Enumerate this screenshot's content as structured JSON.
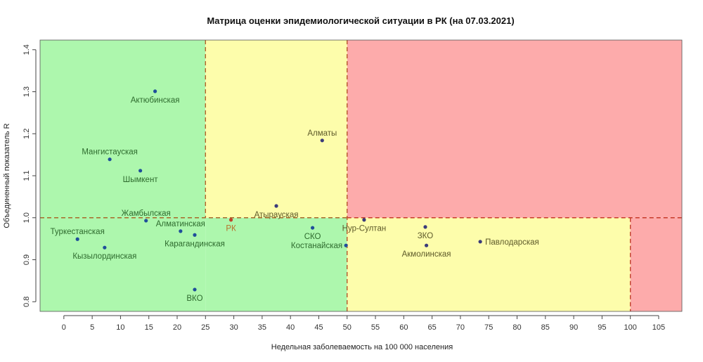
{
  "chart_data": {
    "type": "scatter",
    "title": "Матрица оценки эпидемиологической ситуации в РК (на 07.03.2021)",
    "xlabel": "Недельная заболеваемость на 100 000 населения",
    "ylabel": "Объединенный показатель R",
    "xlim": [
      -4.2,
      109.1
    ],
    "ylim": [
      0.777,
      1.423
    ],
    "xticks": [
      0,
      5,
      10,
      15,
      20,
      25,
      30,
      35,
      40,
      45,
      50,
      55,
      60,
      65,
      70,
      75,
      80,
      85,
      90,
      95,
      100,
      105
    ],
    "yticks": [
      0.8,
      0.9,
      1.0,
      1.1,
      1.2,
      1.3,
      1.4
    ],
    "ytick_labels": [
      "0.8",
      "0.9",
      "1.0",
      "1.1",
      "1.2",
      "1.3",
      "1.4"
    ],
    "grid": false,
    "zones": [
      {
        "name": "green",
        "color": "#adf7ad",
        "x": [
          -4.2,
          25
        ],
        "y": [
          0.777,
          1.423
        ]
      },
      {
        "name": "green",
        "color": "#adf7ad",
        "x": [
          25,
          50
        ],
        "y": [
          0.777,
          1.0
        ]
      },
      {
        "name": "yellow",
        "color": "#fdfdab",
        "x": [
          25,
          50
        ],
        "y": [
          1.0,
          1.423
        ]
      },
      {
        "name": "yellow",
        "color": "#fdfdab",
        "x": [
          50,
          100
        ],
        "y": [
          0.777,
          1.0
        ]
      },
      {
        "name": "red",
        "color": "#fdabab",
        "x": [
          50,
          109.1
        ],
        "y": [
          1.0,
          1.423
        ]
      },
      {
        "name": "red",
        "color": "#fdabab",
        "x": [
          100,
          109.1
        ],
        "y": [
          0.777,
          1.0
        ]
      }
    ],
    "thresholds": {
      "x": [
        25,
        50,
        100
      ],
      "y": 1.0
    },
    "points": [
      {
        "name": "Актюбинская",
        "x": 16.1,
        "y": 1.301
      },
      {
        "name": "Мангистауская",
        "x": 8.1,
        "y": 1.139
      },
      {
        "name": "Шымкент",
        "x": 13.5,
        "y": 1.112
      },
      {
        "name": "Алматы",
        "x": 45.6,
        "y": 1.184
      },
      {
        "name": "Атырауская",
        "x": 37.5,
        "y": 1.028
      },
      {
        "name": "Жамбылская",
        "x": 14.5,
        "y": 0.993
      },
      {
        "name": "РК",
        "x": 29.5,
        "y": 0.995
      },
      {
        "name": "Туркестанская",
        "x": 2.4,
        "y": 0.949
      },
      {
        "name": "Кызылординская",
        "x": 7.2,
        "y": 0.929
      },
      {
        "name": "Алматинская",
        "x": 20.6,
        "y": 0.968
      },
      {
        "name": "Карагандинская",
        "x": 23.1,
        "y": 0.959
      },
      {
        "name": "ВКО",
        "x": 23.1,
        "y": 0.829
      },
      {
        "name": "СКО",
        "x": 43.9,
        "y": 0.976
      },
      {
        "name": "Костанайская",
        "x": 49.8,
        "y": 0.934
      },
      {
        "name": "Нур-Султан",
        "x": 53.0,
        "y": 0.995
      },
      {
        "name": "ЗКО",
        "x": 63.8,
        "y": 0.978
      },
      {
        "name": "Акмолинская",
        "x": 64.0,
        "y": 0.934
      },
      {
        "name": "Павлодарская",
        "x": 73.5,
        "y": 0.943
      }
    ]
  }
}
